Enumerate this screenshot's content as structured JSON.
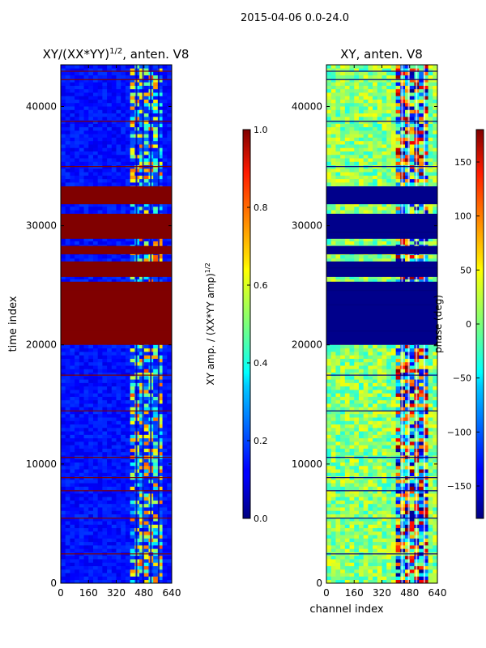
{
  "suptitle": "2015-04-06 0.0-24.0",
  "chart_data": [
    {
      "type": "heatmap",
      "title_main": "XY/(XX*YY)",
      "title_exp": "1/2",
      "title_tail": ", anten. V8",
      "xlabel": "",
      "ylabel": "time index",
      "xlim": [
        0,
        640
      ],
      "ylim": [
        0,
        43500
      ],
      "xticks": [
        0,
        160,
        320,
        480,
        640
      ],
      "yticks": [
        0,
        10000,
        20000,
        30000,
        40000
      ],
      "colormap": "jet",
      "colorbar": {
        "label_main": "XY amp. / (XX*YY amp)",
        "label_exp": "1/2",
        "range": [
          0.0,
          1.0
        ],
        "ticks": [
          "0.0",
          "0.2",
          "0.4",
          "0.6",
          "0.8",
          "1.0"
        ]
      },
      "saturated_time_bands": [
        [
          20000,
          25300
        ],
        [
          25700,
          27000
        ],
        [
          27600,
          28300
        ],
        [
          28900,
          31000
        ],
        [
          31800,
          33300
        ]
      ],
      "dense_channel_range": [
        400,
        600
      ],
      "background_value": 0.12
    },
    {
      "type": "heatmap",
      "title_main": "XY, anten. V8",
      "xlabel": "channel index",
      "ylabel": "",
      "xlim": [
        0,
        640
      ],
      "ylim": [
        0,
        43500
      ],
      "xticks": [
        0,
        160,
        320,
        480,
        640
      ],
      "yticks": [
        0,
        10000,
        20000,
        30000,
        40000
      ],
      "colormap": "jet",
      "colorbar": {
        "label_main": "phase (deg)",
        "range": [
          -180,
          180
        ],
        "ticks": [
          "−150",
          "−100",
          "−50",
          "0",
          "50",
          "100",
          "150"
        ],
        "tick_values": [
          -150,
          -100,
          -50,
          0,
          50,
          100,
          150
        ]
      },
      "saturated_time_bands": [
        [
          20000,
          25300
        ],
        [
          25700,
          27000
        ],
        [
          27600,
          28300
        ],
        [
          28900,
          31000
        ],
        [
          31800,
          33300
        ]
      ],
      "dense_channel_range": [
        400,
        600
      ],
      "background_value": 0.0
    }
  ]
}
